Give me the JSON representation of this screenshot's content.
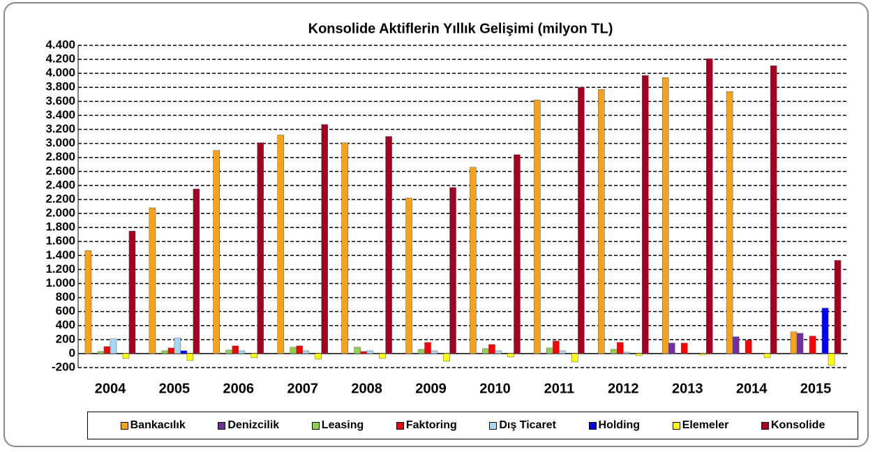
{
  "chart_data": {
    "type": "bar",
    "title": "Konsolide Aktiflerin Yıllık Gelişimi (milyon TL)",
    "categories": [
      "2004",
      "2005",
      "2006",
      "2007",
      "2008",
      "2009",
      "2010",
      "2011",
      "2012",
      "2013",
      "2014",
      "2015"
    ],
    "series": [
      {
        "name": "Bankacılık",
        "color": "#f7a21b",
        "values": [
          1470,
          2080,
          2900,
          3120,
          3010,
          2220,
          2660,
          3620,
          3770,
          3940,
          3740,
          310
        ]
      },
      {
        "name": "Denizcilik",
        "color": "#7030a0",
        "values": [
          0,
          0,
          0,
          0,
          0,
          0,
          0,
          0,
          0,
          150,
          240,
          290
        ]
      },
      {
        "name": "Leasing",
        "color": "#92d050",
        "values": [
          30,
          40,
          50,
          90,
          90,
          60,
          70,
          80,
          60,
          0,
          0,
          0
        ]
      },
      {
        "name": "Faktoring",
        "color": "#ff0000",
        "values": [
          100,
          80,
          110,
          110,
          30,
          160,
          130,
          180,
          160,
          150,
          190,
          250
        ]
      },
      {
        "name": "Dış Ticaret",
        "color": "#a6d8f5",
        "values": [
          210,
          220,
          40,
          40,
          40,
          40,
          40,
          40,
          20,
          0,
          0,
          0
        ]
      },
      {
        "name": "Holding",
        "color": "#0000ff",
        "values": [
          0,
          40,
          0,
          0,
          0,
          0,
          0,
          0,
          0,
          0,
          0,
          650
        ]
      },
      {
        "name": "Elemeler",
        "color": "#ffff00",
        "values": [
          -70,
          -100,
          -60,
          -80,
          -70,
          -110,
          -50,
          -120,
          -30,
          -20,
          -60,
          -170
        ]
      },
      {
        "name": "Konsolide",
        "color": "#a50021",
        "values": [
          1750,
          2350,
          3010,
          3270,
          3100,
          2370,
          2840,
          3800,
          3970,
          4210,
          4110,
          1330
        ]
      }
    ],
    "ylim": [
      -200,
      4400
    ],
    "yticks": [
      -200,
      0,
      200,
      400,
      600,
      800,
      {
        "value": 1000,
        "label": "1.000"
      },
      {
        "value": 1200,
        "label": "1.200"
      },
      {
        "value": 1400,
        "label": "1.400"
      },
      {
        "value": 1600,
        "label": "1.600"
      },
      {
        "value": 1800,
        "label": "1.800"
      },
      {
        "value": 2000,
        "label": "2.000"
      },
      {
        "value": 2200,
        "label": "2.200"
      },
      {
        "value": 2400,
        "label": "2.400"
      },
      {
        "value": 2600,
        "label": "2.600"
      },
      {
        "value": 2800,
        "label": "2.800"
      },
      {
        "value": 3000,
        "label": "3.000"
      },
      {
        "value": 3200,
        "label": "3.200"
      },
      {
        "value": 3400,
        "label": "3.400"
      },
      {
        "value": 3600,
        "label": "3.600"
      },
      {
        "value": 3800,
        "label": "3.800"
      },
      {
        "value": 4000,
        "label": "4.000"
      },
      {
        "value": 4200,
        "label": "4.200"
      },
      {
        "value": 4400,
        "label": "4.400"
      }
    ],
    "grid": true
  }
}
